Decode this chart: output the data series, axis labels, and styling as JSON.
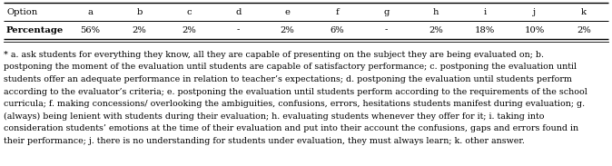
{
  "col_headers": [
    "Option",
    "a",
    "b",
    "c",
    "d",
    "e",
    "f",
    "g",
    "h",
    "i",
    "j",
    "k"
  ],
  "row_label": "Percentage",
  "row_values": [
    "56%",
    "2%",
    "2%",
    "-",
    "2%",
    "6%",
    "-",
    "2%",
    "18%",
    "10%",
    "2%"
  ],
  "footnote_lines": [
    "* a. ask students for everything they know, all they are capable of presenting on the subject they are being evaluated on; b.",
    "postponing the moment of the evaluation until students are capable of satisfactory performance; c. postponing the evaluation until",
    "students offer an adequate performance in relation to teacher’s expectations; d. postponing the evaluation until students perform",
    "according to the evaluator’s criteria; e. postponing the evaluation until students perform according to the requirements of the school",
    "curricula; f. making concessions/ overlooking the ambiguities, confusions, errors, hesitations students manifest during evaluation; g.",
    "(always) being lenient with students during their evaluation; h. evaluating students whenever they offer for it; i. taking into",
    "consideration students’ emotions at the time of their evaluation and put into their account the confusions, gaps and errors found in",
    "their performance; j. there is no understanding for students under evaluation, they must always learn; k. other answer."
  ],
  "background_color": "#ffffff",
  "border_color": "#000000",
  "font_size": 7.2,
  "footnote_font_size": 6.8,
  "fig_width": 6.74,
  "fig_height": 1.83,
  "dpi": 100
}
